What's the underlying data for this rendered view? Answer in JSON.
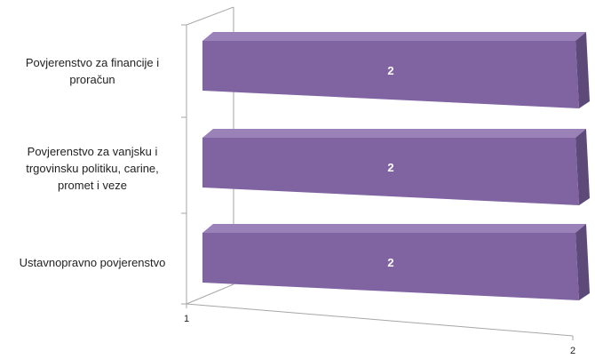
{
  "chart_data": {
    "type": "bar",
    "orientation": "horizontal",
    "style": "3d",
    "categories": [
      "Povjerenstvo za financije i proračun",
      "Povjerenstvo za vanjsku i trgovinsku politiku, carine, promet i veze",
      "Ustavnopravno povjerenstvo"
    ],
    "category_lines": [
      [
        "Povjerenstvo za financije i",
        "proračun"
      ],
      [
        "Povjerenstvo za vanjsku i",
        "trgovinsku politiku, carine,",
        "promet i veze"
      ],
      [
        "Ustavnopravno povjerenstvo"
      ]
    ],
    "values": [
      2,
      2,
      2
    ],
    "data_labels": [
      "2",
      "2",
      "2"
    ],
    "x_ticks": [
      "1",
      "2"
    ],
    "xlim": [
      1,
      2
    ],
    "grid": false,
    "legend": "none",
    "colors": {
      "bar_front": "#8064a2",
      "bar_top": "#9a82b8",
      "bar_side": "#5e4a78",
      "axis": "#a6a6a6"
    }
  }
}
